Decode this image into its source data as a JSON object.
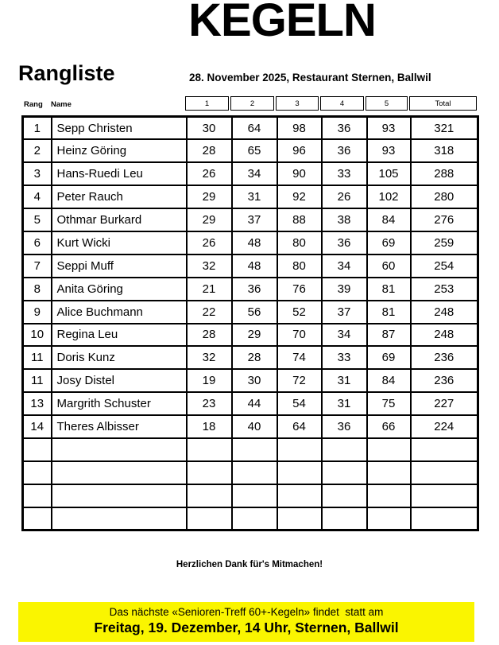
{
  "page": {
    "title": "KEGELN",
    "list_title": "Rangliste",
    "event_info": "28. November 2025, Restaurant Sternen, Ballwil"
  },
  "table": {
    "rank_header": "Rang",
    "name_header": "Name",
    "score_headers": [
      "1",
      "2",
      "3",
      "4",
      "5",
      "Total"
    ],
    "rows": [
      {
        "rank": "1",
        "name": "Sepp Christen",
        "scores": [
          "30",
          "64",
          "98",
          "36",
          "93"
        ],
        "total": "321"
      },
      {
        "rank": "2",
        "name": "Heinz Göring",
        "scores": [
          "28",
          "65",
          "96",
          "36",
          "93"
        ],
        "total": "318"
      },
      {
        "rank": "3",
        "name": "Hans-Ruedi Leu",
        "scores": [
          "26",
          "34",
          "90",
          "33",
          "105"
        ],
        "total": "288"
      },
      {
        "rank": "4",
        "name": "Peter Rauch",
        "scores": [
          "29",
          "31",
          "92",
          "26",
          "102"
        ],
        "total": "280"
      },
      {
        "rank": "5",
        "name": "Othmar Burkard",
        "scores": [
          "29",
          "37",
          "88",
          "38",
          "84"
        ],
        "total": "276"
      },
      {
        "rank": "6",
        "name": "Kurt Wicki",
        "scores": [
          "26",
          "48",
          "80",
          "36",
          "69"
        ],
        "total": "259"
      },
      {
        "rank": "7",
        "name": "Seppi Muff",
        "scores": [
          "32",
          "48",
          "80",
          "34",
          "60"
        ],
        "total": "254"
      },
      {
        "rank": "8",
        "name": "Anita Göring",
        "scores": [
          "21",
          "36",
          "76",
          "39",
          "81"
        ],
        "total": "253"
      },
      {
        "rank": "9",
        "name": "Alice Buchmann",
        "scores": [
          "22",
          "56",
          "52",
          "37",
          "81"
        ],
        "total": "248"
      },
      {
        "rank": "10",
        "name": "Regina Leu",
        "scores": [
          "28",
          "29",
          "70",
          "34",
          "87"
        ],
        "total": "248"
      },
      {
        "rank": "11",
        "name": "Doris Kunz",
        "scores": [
          "32",
          "28",
          "74",
          "33",
          "69"
        ],
        "total": "236"
      },
      {
        "rank": "11",
        "name": "Josy Distel",
        "scores": [
          "19",
          "30",
          "72",
          "31",
          "84"
        ],
        "total": "236"
      },
      {
        "rank": "13",
        "name": "Margrith Schuster",
        "scores": [
          "23",
          "44",
          "54",
          "31",
          "75"
        ],
        "total": "227"
      },
      {
        "rank": "14",
        "name": "Theres Albisser",
        "scores": [
          "18",
          "40",
          "64",
          "36",
          "66"
        ],
        "total": "224"
      }
    ],
    "empty_row_count": 4
  },
  "footer": {
    "thanks": "Herzlichen Dank für's Mitmachen!",
    "notice_line1": "Das nächste «Senioren-Treff 60+-Kegeln» findet  statt am",
    "notice_line2": "Freitag, 19. Dezember, 14 Uhr, Sternen, Ballwil",
    "highlight_color": "#FAF500"
  }
}
